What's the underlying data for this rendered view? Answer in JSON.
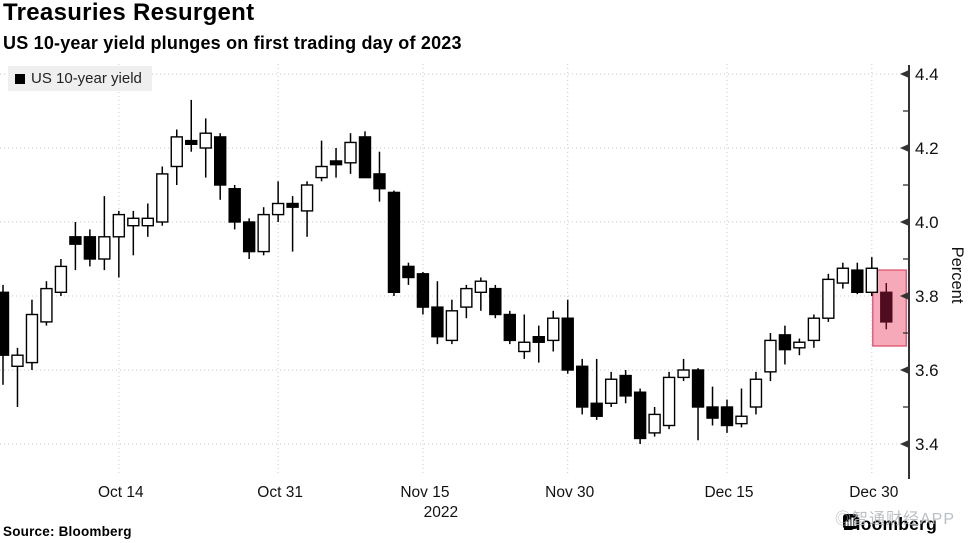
{
  "header": {
    "title": "Treasuries Resurgent",
    "subtitle": "US 10-year yield plunges on first trading day of 2023"
  },
  "legend": {
    "label": "US 10-year yield",
    "swatch_color": "#000000"
  },
  "footer": {
    "source": "Source: Bloomberg",
    "brand": "Bloomberg",
    "watermark": "◎智通财经APP"
  },
  "chart_data": {
    "type": "candlestick",
    "title": "Treasuries Resurgent",
    "subtitle": "US 10-year yield plunges on first trading day of 2023",
    "series_name": "US 10-year yield",
    "ylabel": "Percent",
    "grid": true,
    "legend_position": "top-left",
    "y_axis": {
      "min": 3.3,
      "max": 4.45,
      "labeled_ticks": [
        4.4,
        4.2,
        4.0,
        3.8,
        3.6,
        3.4
      ],
      "minor_step": 0.1
    },
    "x_axis": {
      "year": "2022",
      "year_under_label": "Nov 15",
      "ticks": [
        {
          "label": "Oct 14",
          "index": 8
        },
        {
          "label": "Oct 31",
          "index": 19
        },
        {
          "label": "Nov 15",
          "index": 29
        },
        {
          "label": "Nov 30",
          "index": 39
        },
        {
          "label": "Dec 15",
          "index": 50
        },
        {
          "label": "Dec 30",
          "index": 60
        }
      ]
    },
    "colors": {
      "up_fill": "#ffffff",
      "up_stroke": "#000000",
      "down_fill": "#000000",
      "down_stroke": "#000000",
      "highlight_candle": "#4f0d1f",
      "highlight_box_fill": "#f494a7",
      "highlight_box_stroke": "#e2617a",
      "grid": "#c9c9c9",
      "axis": "#333333",
      "text": "#111111"
    },
    "highlight": {
      "candle_index": 61,
      "value_top": 3.87,
      "value_bottom": 3.665,
      "note": "first trading day of 2023"
    },
    "candles_format": [
      "open",
      "high",
      "low",
      "close"
    ],
    "candles": [
      [
        3.81,
        3.83,
        3.56,
        3.64
      ],
      [
        3.61,
        3.66,
        3.5,
        3.64
      ],
      [
        3.62,
        3.79,
        3.6,
        3.75
      ],
      [
        3.73,
        3.84,
        3.72,
        3.82
      ],
      [
        3.81,
        3.9,
        3.8,
        3.88
      ],
      [
        3.96,
        4.0,
        3.87,
        3.94
      ],
      [
        3.96,
        3.98,
        3.88,
        3.9
      ],
      [
        3.9,
        4.07,
        3.87,
        3.96
      ],
      [
        3.96,
        4.03,
        3.85,
        4.02
      ],
      [
        3.99,
        4.03,
        3.91,
        4.01
      ],
      [
        3.99,
        4.05,
        3.96,
        4.01
      ],
      [
        4.0,
        4.15,
        3.99,
        4.13
      ],
      [
        4.15,
        4.25,
        4.1,
        4.23
      ],
      [
        4.22,
        4.33,
        4.19,
        4.21
      ],
      [
        4.2,
        4.28,
        4.12,
        4.24
      ],
      [
        4.23,
        4.24,
        4.06,
        4.1
      ],
      [
        4.09,
        4.1,
        3.98,
        4.0
      ],
      [
        4.0,
        4.01,
        3.9,
        3.92
      ],
      [
        3.92,
        4.04,
        3.91,
        4.02
      ],
      [
        4.02,
        4.11,
        4.0,
        4.05
      ],
      [
        4.05,
        4.07,
        3.92,
        4.04
      ],
      [
        4.03,
        4.11,
        3.96,
        4.1
      ],
      [
        4.12,
        4.22,
        4.11,
        4.15
      ],
      [
        4.165,
        4.2,
        4.12,
        4.155
      ],
      [
        4.16,
        4.24,
        4.13,
        4.215
      ],
      [
        4.23,
        4.245,
        4.12,
        4.12
      ],
      [
        4.13,
        4.19,
        4.055,
        4.09
      ],
      [
        4.08,
        4.085,
        3.8,
        3.81
      ],
      [
        3.88,
        3.89,
        3.83,
        3.85
      ],
      [
        3.86,
        3.865,
        3.75,
        3.77
      ],
      [
        3.77,
        3.84,
        3.67,
        3.69
      ],
      [
        3.68,
        3.79,
        3.67,
        3.76
      ],
      [
        3.77,
        3.83,
        3.74,
        3.82
      ],
      [
        3.81,
        3.85,
        3.76,
        3.84
      ],
      [
        3.82,
        3.83,
        3.74,
        3.75
      ],
      [
        3.75,
        3.76,
        3.67,
        3.68
      ],
      [
        3.65,
        3.75,
        3.63,
        3.675
      ],
      [
        3.69,
        3.72,
        3.62,
        3.675
      ],
      [
        3.68,
        3.76,
        3.65,
        3.74
      ],
      [
        3.74,
        3.79,
        3.59,
        3.6
      ],
      [
        3.61,
        3.63,
        3.48,
        3.5
      ],
      [
        3.51,
        3.63,
        3.465,
        3.475
      ],
      [
        3.51,
        3.595,
        3.5,
        3.575
      ],
      [
        3.585,
        3.6,
        3.51,
        3.53
      ],
      [
        3.54,
        3.55,
        3.4,
        3.415
      ],
      [
        3.43,
        3.5,
        3.42,
        3.48
      ],
      [
        3.45,
        3.595,
        3.44,
        3.58
      ],
      [
        3.58,
        3.63,
        3.57,
        3.6
      ],
      [
        3.6,
        3.605,
        3.41,
        3.5
      ],
      [
        3.5,
        3.555,
        3.45,
        3.47
      ],
      [
        3.5,
        3.52,
        3.43,
        3.45
      ],
      [
        3.455,
        3.55,
        3.445,
        3.475
      ],
      [
        3.5,
        3.595,
        3.48,
        3.575
      ],
      [
        3.595,
        3.7,
        3.57,
        3.68
      ],
      [
        3.695,
        3.72,
        3.615,
        3.655
      ],
      [
        3.66,
        3.685,
        3.64,
        3.675
      ],
      [
        3.68,
        3.75,
        3.66,
        3.74
      ],
      [
        3.74,
        3.86,
        3.73,
        3.845
      ],
      [
        3.835,
        3.89,
        3.82,
        3.875
      ],
      [
        3.87,
        3.89,
        3.805,
        3.81
      ],
      [
        3.81,
        3.905,
        3.8,
        3.875
      ],
      [
        3.81,
        3.835,
        3.71,
        3.73
      ]
    ]
  }
}
